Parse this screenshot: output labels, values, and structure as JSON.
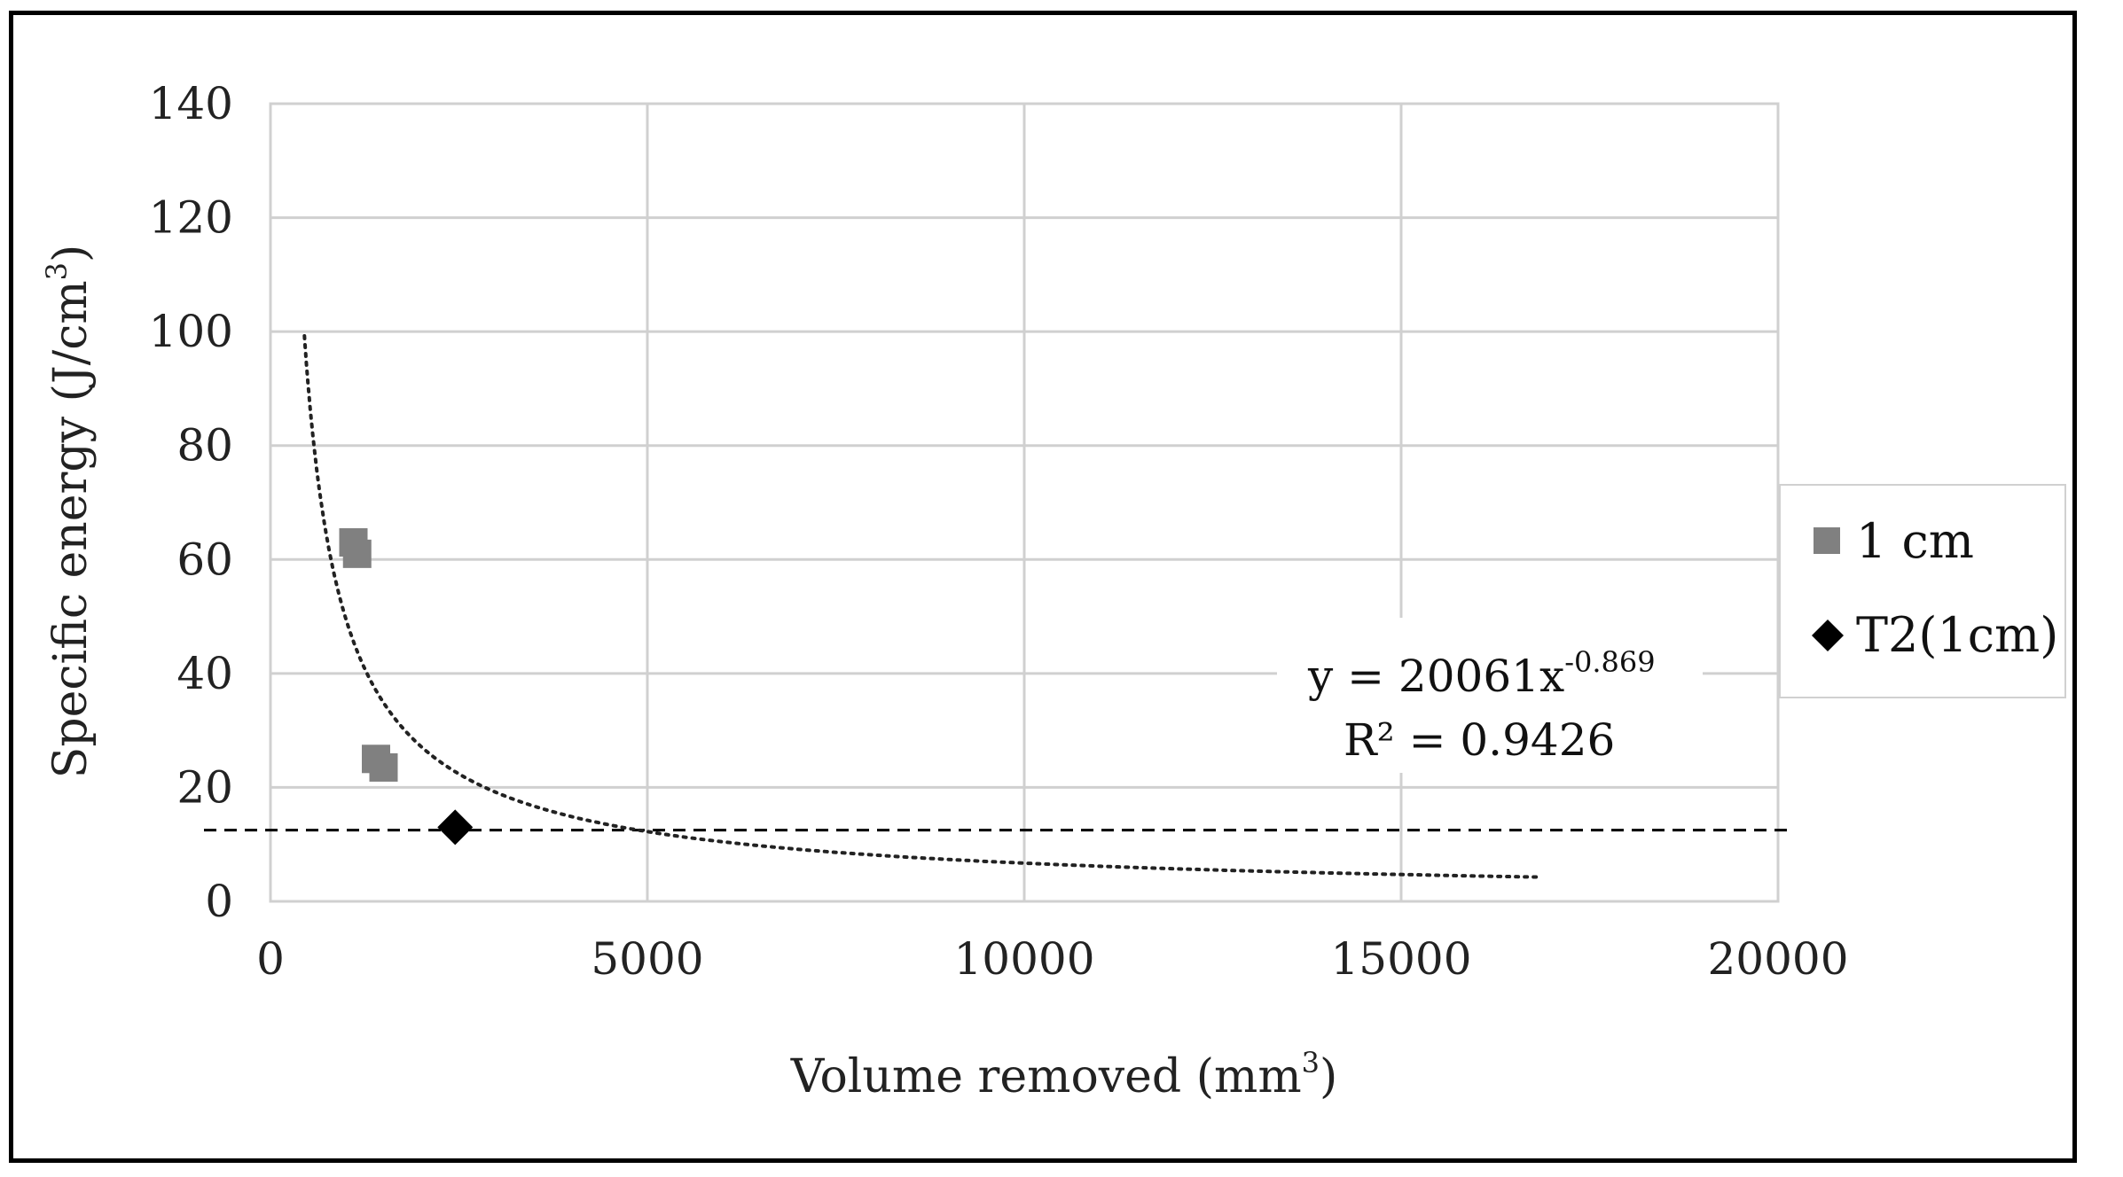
{
  "chart_data": {
    "type": "scatter",
    "xlabel": "Volume removed (mm",
    "xlabel_sup": "3",
    "xlabel_end": ")",
    "ylabel": "Specific energy (J/cm",
    "ylabel_sup": "3",
    "ylabel_end": ")",
    "xlim": [
      0,
      20000
    ],
    "ylim": [
      0,
      140
    ],
    "x_ticks": [
      "0",
      "5000",
      "10000",
      "15000",
      "20000"
    ],
    "y_ticks": [
      "0",
      "20",
      "40",
      "60",
      "80",
      "100",
      "120",
      "140"
    ],
    "grid": true,
    "legend_position": "right",
    "series": [
      {
        "name": "1 cm",
        "marker": "square",
        "color": "#808080",
        "points": [
          {
            "x": 1100,
            "y": 63
          },
          {
            "x": 1150,
            "y": 61
          },
          {
            "x": 1400,
            "y": 25
          },
          {
            "x": 1500,
            "y": 23.5
          }
        ]
      },
      {
        "name": "T2(1cm)",
        "marker": "diamond",
        "color": "#000000",
        "points": [
          {
            "x": 2450,
            "y": 13
          }
        ]
      }
    ],
    "trendline": {
      "type": "power",
      "coefficient": 20061,
      "exponent": -0.869,
      "x_range": [
        450,
        16800
      ],
      "style": "dotted",
      "equation_main": "y = 20061x",
      "equation_sup": "-0.869",
      "r2_label": "R² = 0.9426"
    },
    "reference_line": {
      "y": 12.5,
      "style": "dashed",
      "color": "#000000"
    }
  }
}
